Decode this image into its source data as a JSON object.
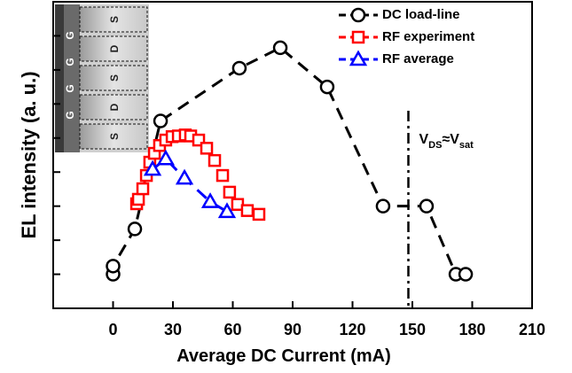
{
  "chart_data": {
    "type": "line",
    "xlabel": "Average DC Current (mA)",
    "ylabel": "EL intensity (a. u.)",
    "xlim": [
      -30,
      210
    ],
    "xticks": [
      0,
      30,
      60,
      90,
      120,
      150,
      180,
      210
    ],
    "ylim": [
      0,
      9
    ],
    "yticks": [
      1,
      2,
      3,
      4,
      5,
      6,
      7,
      8
    ],
    "series": [
      {
        "name": "DC load-line",
        "color": "#000000",
        "marker": "circle",
        "x": [
          0,
          0,
          10.9,
          23.8,
          63.3,
          83.8,
          107.3,
          135.3,
          157.1,
          171.8,
          176.7
        ],
        "values": [
          1.0,
          1.24,
          2.33,
          5.5,
          7.05,
          7.65,
          6.5,
          3.0,
          3.0,
          1.0,
          1.0
        ]
      },
      {
        "name": "RF experiment",
        "color": "#ff0000",
        "marker": "square",
        "x": [
          11.8,
          12.7,
          14.9,
          16.7,
          18.4,
          20.7,
          23.3,
          26.4,
          29.6,
          32.7,
          36.2,
          38.9,
          42.9,
          46.9,
          50.9,
          54.9,
          58.4,
          62.4,
          67.3,
          73.1
        ],
        "values": [
          3.07,
          3.2,
          3.51,
          3.9,
          4.29,
          4.55,
          4.78,
          4.94,
          5.04,
          5.06,
          5.09,
          5.06,
          4.94,
          4.7,
          4.34,
          3.9,
          3.41,
          3.05,
          2.87,
          2.76
        ]
      },
      {
        "name": "RF average",
        "color": "#0000ff",
        "marker": "triangle",
        "x": [
          19.8,
          26.4,
          35.8,
          48.7,
          57.1
        ],
        "values": [
          4.08,
          4.39,
          3.82,
          3.13,
          2.84
        ]
      }
    ],
    "vline": {
      "x": 148,
      "label": [
        "V",
        "DS",
        "≈V",
        "sat"
      ]
    },
    "inset": {
      "gate_labels": [
        "G",
        "G",
        "G",
        "G"
      ],
      "strip_labels": [
        "S",
        "D",
        "S",
        "D",
        "S"
      ]
    }
  }
}
